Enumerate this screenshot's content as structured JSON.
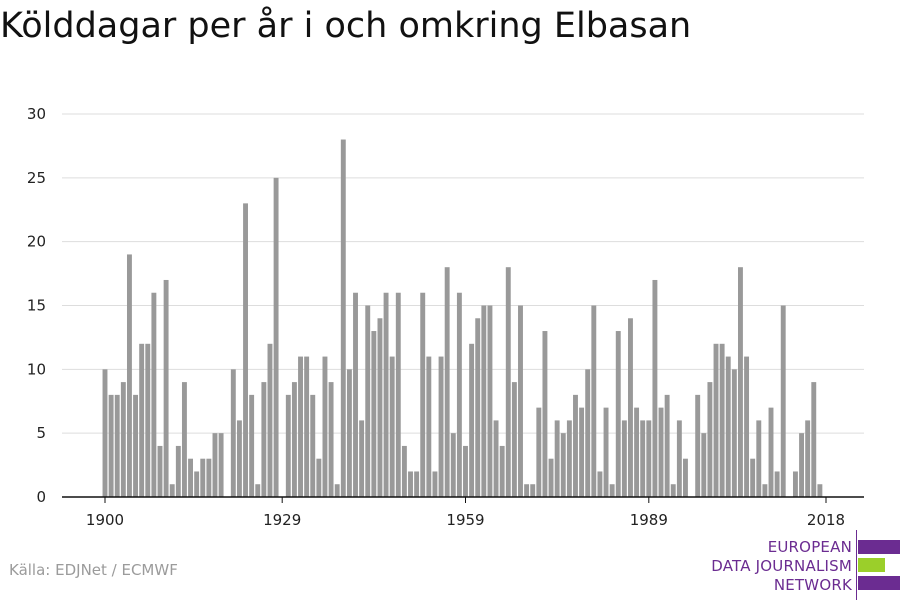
{
  "title": "Kölddagar per år i och omkring Elbasan",
  "source": "Källa: EDJNet / ECMWF",
  "logo": {
    "lines": [
      "EUROPEAN",
      "DATA JOURNALISM",
      "NETWORK"
    ],
    "colors": {
      "purple": "#6b2c91",
      "green": "#9bcf2a"
    }
  },
  "colors": {
    "bar": "#999999",
    "grid": "#dddddd",
    "axis": "#111111"
  },
  "chart_data": {
    "type": "bar",
    "title": "Kölddagar per år i och omkring Elbasan",
    "xlabel": "",
    "ylabel": "",
    "x_range": [
      1900,
      2018
    ],
    "ylim": [
      0,
      30
    ],
    "yticks": [
      0,
      5,
      10,
      15,
      20,
      25,
      30
    ],
    "xticks": [
      1900,
      1929,
      1959,
      1989,
      2018
    ],
    "grid": true,
    "series": [
      {
        "x": [
          1900,
          1901,
          1902,
          1903,
          1904,
          1905,
          1906,
          1907,
          1908,
          1909,
          1910,
          1911,
          1912,
          1913,
          1914,
          1915,
          1916,
          1917,
          1918,
          1919,
          1920,
          1921,
          1922,
          1923,
          1924,
          1925,
          1926,
          1927,
          1928,
          1929,
          1930,
          1931,
          1932,
          1933,
          1934,
          1935,
          1936,
          1937,
          1938,
          1939,
          1940,
          1941,
          1942,
          1943,
          1944,
          1945,
          1946,
          1947,
          1948,
          1949,
          1950,
          1951,
          1952,
          1953,
          1954,
          1955,
          1956,
          1957,
          1958,
          1959,
          1960,
          1961,
          1962,
          1963,
          1964,
          1965,
          1966,
          1967,
          1968,
          1969,
          1970,
          1971,
          1972,
          1973,
          1974,
          1975,
          1976,
          1977,
          1978,
          1979,
          1980,
          1981,
          1982,
          1983,
          1984,
          1985,
          1986,
          1987,
          1988,
          1989,
          1990,
          1991,
          1992,
          1993,
          1994,
          1995,
          1996,
          1997,
          1998,
          1999,
          2000,
          2001,
          2002,
          2003,
          2004,
          2005,
          2006,
          2007,
          2008,
          2009,
          2010,
          2011,
          2012,
          2013,
          2014,
          2015,
          2016,
          2017,
          2018
        ],
        "values": [
          10,
          8,
          8,
          9,
          19,
          8,
          12,
          12,
          16,
          4,
          17,
          1,
          4,
          9,
          3,
          2,
          3,
          3,
          5,
          5,
          0,
          10,
          6,
          23,
          8,
          1,
          9,
          12,
          25,
          0,
          8,
          9,
          11,
          11,
          8,
          3,
          11,
          9,
          1,
          28,
          10,
          16,
          6,
          15,
          13,
          14,
          16,
          11,
          16,
          4,
          2,
          2,
          16,
          11,
          2,
          11,
          18,
          5,
          16,
          4,
          12,
          14,
          15,
          15,
          6,
          4,
          18,
          9,
          15,
          1,
          1,
          7,
          13,
          3,
          6,
          5,
          6,
          8,
          7,
          10,
          15,
          2,
          7,
          1,
          13,
          6,
          14,
          7,
          6,
          6,
          17,
          7,
          8,
          1,
          6,
          3,
          0,
          8,
          5,
          9,
          12,
          12,
          11,
          10,
          18,
          11,
          3,
          6,
          1,
          7,
          2,
          15,
          0,
          2,
          5,
          6,
          9,
          1,
          0
        ]
      }
    ]
  }
}
